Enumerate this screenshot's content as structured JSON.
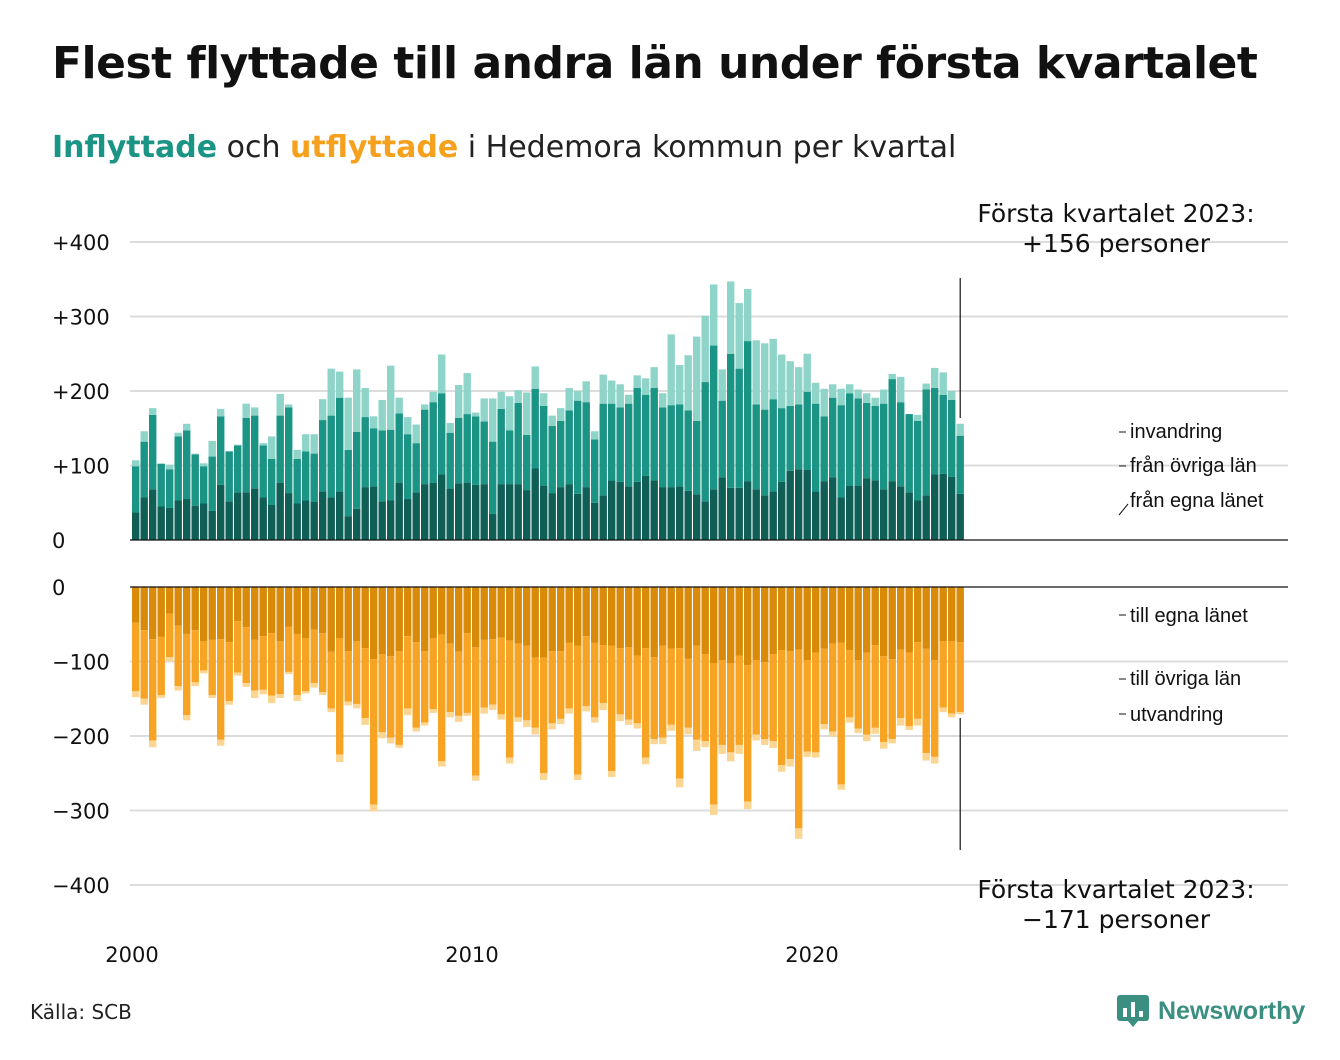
{
  "title": "Flest flyttade till andra län under första kvartalet",
  "subtitle": {
    "in_word": "Inflyttade",
    "mid": " och ",
    "out_word": "utflyttade",
    "rest": " i Hedemora kommun per kvartal"
  },
  "colors": {
    "in_own": "#0f5f57",
    "in_other": "#1a9485",
    "in_imm": "#8ed4c9",
    "out_own": "#d98a08",
    "out_other": "#f7a323",
    "out_emig": "#fbd592",
    "grid": "#dcdcdc",
    "logo": "#3a8f80"
  },
  "annotations": {
    "top_line1": "Första kvartalet 2023:",
    "top_line2": "+156 personer",
    "bottom_line1": "Första kvartalet 2023:",
    "bottom_line2": "−171 personer"
  },
  "source": "Källa: SCB",
  "logo": {
    "text": "Newsworthy",
    "icon": "bar-chart-badge-icon"
  },
  "chart_data": {
    "type": "bar",
    "stacked": true,
    "x_unit": "quarter",
    "x_start": "2000 Q1",
    "x_end": "2023 Q1",
    "x_ticks": [
      "2000",
      "2010",
      "2020"
    ],
    "in_panel": {
      "y_ticks": [
        "+400",
        "+300",
        "+200",
        "+100",
        "0"
      ],
      "ylim": [
        0,
        400
      ],
      "series_labels": [
        "invandring",
        "från övriga län",
        "från egna länet"
      ],
      "own": [
        37,
        57,
        68,
        45,
        43,
        53,
        55,
        46,
        49,
        39,
        74,
        52,
        64,
        64,
        69,
        57,
        47,
        77,
        63,
        49,
        53,
        51,
        65,
        57,
        65,
        32,
        42,
        71,
        72,
        52,
        53,
        77,
        55,
        64,
        75,
        77,
        88,
        69,
        76,
        77,
        74,
        75,
        35,
        75,
        75,
        75,
        67,
        96,
        73,
        63,
        71,
        75,
        62,
        71,
        50,
        60,
        80,
        78,
        72,
        78,
        86,
        80,
        71,
        71,
        72,
        66,
        61,
        52,
        68,
        84,
        70,
        70,
        79,
        68,
        60,
        65,
        78,
        93,
        95,
        94,
        65,
        79,
        84,
        57,
        73,
        73,
        83,
        80,
        68,
        79,
        72,
        64,
        53,
        60,
        88,
        89,
        85,
        62
      ],
      "other": [
        62,
        75,
        100,
        57,
        52,
        86,
        92,
        69,
        50,
        73,
        92,
        67,
        63,
        100,
        98,
        70,
        62,
        90,
        115,
        60,
        66,
        65,
        96,
        110,
        126,
        89,
        103,
        94,
        78,
        95,
        95,
        93,
        87,
        66,
        100,
        108,
        109,
        75,
        88,
        92,
        92,
        84,
        97,
        101,
        72,
        109,
        74,
        107,
        107,
        90,
        89,
        99,
        125,
        114,
        85,
        123,
        103,
        100,
        111,
        126,
        109,
        124,
        107,
        110,
        110,
        108,
        99,
        160,
        193,
        103,
        180,
        160,
        188,
        114,
        115,
        124,
        99,
        87,
        87,
        105,
        118,
        87,
        107,
        124,
        124,
        117,
        101,
        100,
        115,
        137,
        113,
        105,
        107,
        142,
        116,
        106,
        103,
        78
      ],
      "imm": [
        8,
        14,
        9,
        1,
        6,
        5,
        9,
        1,
        4,
        21,
        10,
        0,
        1,
        19,
        11,
        3,
        30,
        29,
        4,
        12,
        23,
        26,
        28,
        63,
        35,
        70,
        84,
        39,
        16,
        41,
        86,
        21,
        23,
        25,
        7,
        14,
        52,
        13,
        44,
        55,
        5,
        31,
        58,
        23,
        46,
        17,
        57,
        30,
        17,
        14,
        17,
        30,
        13,
        28,
        11,
        39,
        31,
        31,
        12,
        17,
        22,
        28,
        19,
        95,
        53,
        74,
        113,
        89,
        82,
        42,
        97,
        88,
        70,
        86,
        89,
        81,
        72,
        60,
        50,
        51,
        28,
        37,
        18,
        22,
        12,
        12,
        13,
        11,
        19,
        7,
        34,
        0,
        8,
        8,
        27,
        30,
        12,
        16
      ]
    },
    "out_panel": {
      "y_ticks": [
        "0",
        "−100",
        "−200",
        "−300",
        "−400"
      ],
      "ylim": [
        -400,
        0
      ],
      "series_labels": [
        "till egna länet",
        "till övriga län",
        "utvandring"
      ],
      "own": [
        48,
        58,
        70,
        67,
        36,
        52,
        63,
        58,
        73,
        71,
        70,
        74,
        46,
        54,
        71,
        66,
        62,
        73,
        53,
        63,
        69,
        57,
        62,
        87,
        69,
        86,
        73,
        82,
        97,
        90,
        93,
        86,
        66,
        74,
        86,
        69,
        64,
        76,
        87,
        62,
        81,
        71,
        70,
        68,
        72,
        76,
        79,
        95,
        95,
        86,
        86,
        75,
        79,
        66,
        75,
        78,
        79,
        82,
        81,
        92,
        82,
        94,
        79,
        83,
        82,
        96,
        79,
        90,
        102,
        98,
        102,
        92,
        105,
        98,
        101,
        90,
        85,
        86,
        84,
        98,
        88,
        83,
        76,
        75,
        85,
        98,
        88,
        78,
        93,
        97,
        84,
        88,
        74,
        83,
        98,
        73,
        73,
        74
      ],
      "other": [
        92,
        92,
        136,
        78,
        58,
        81,
        109,
        70,
        39,
        74,
        135,
        79,
        69,
        75,
        68,
        72,
        84,
        71,
        61,
        82,
        71,
        72,
        79,
        76,
        156,
        68,
        84,
        94,
        195,
        105,
        109,
        126,
        97,
        115,
        96,
        95,
        170,
        92,
        86,
        107,
        172,
        91,
        88,
        103,
        157,
        99,
        100,
        94,
        155,
        97,
        91,
        88,
        173,
        94,
        100,
        78,
        168,
        89,
        97,
        91,
        147,
        110,
        123,
        102,
        175,
        93,
        126,
        117,
        190,
        114,
        120,
        120,
        183,
        100,
        103,
        117,
        154,
        145,
        240,
        123,
        134,
        101,
        118,
        190,
        90,
        92,
        110,
        111,
        115,
        107,
        92,
        99,
        103,
        140,
        130,
        89,
        97,
        94
      ],
      "emig": [
        8,
        8,
        9,
        4,
        6,
        6,
        7,
        5,
        4,
        4,
        8,
        5,
        4,
        5,
        10,
        6,
        10,
        5,
        3,
        8,
        3,
        6,
        4,
        5,
        10,
        5,
        6,
        9,
        9,
        8,
        8,
        4,
        9,
        5,
        4,
        5,
        7,
        7,
        8,
        4,
        7,
        8,
        7,
        7,
        8,
        6,
        9,
        9,
        9,
        8,
        7,
        7,
        7,
        7,
        7,
        9,
        8,
        9,
        7,
        7,
        9,
        7,
        9,
        8,
        12,
        9,
        15,
        8,
        14,
        12,
        12,
        12,
        10,
        8,
        8,
        9,
        9,
        10,
        14,
        7,
        7,
        7,
        7,
        7,
        7,
        6,
        9,
        8,
        9,
        6,
        10,
        5,
        9,
        10,
        9,
        6,
        5,
        3
      ]
    }
  }
}
